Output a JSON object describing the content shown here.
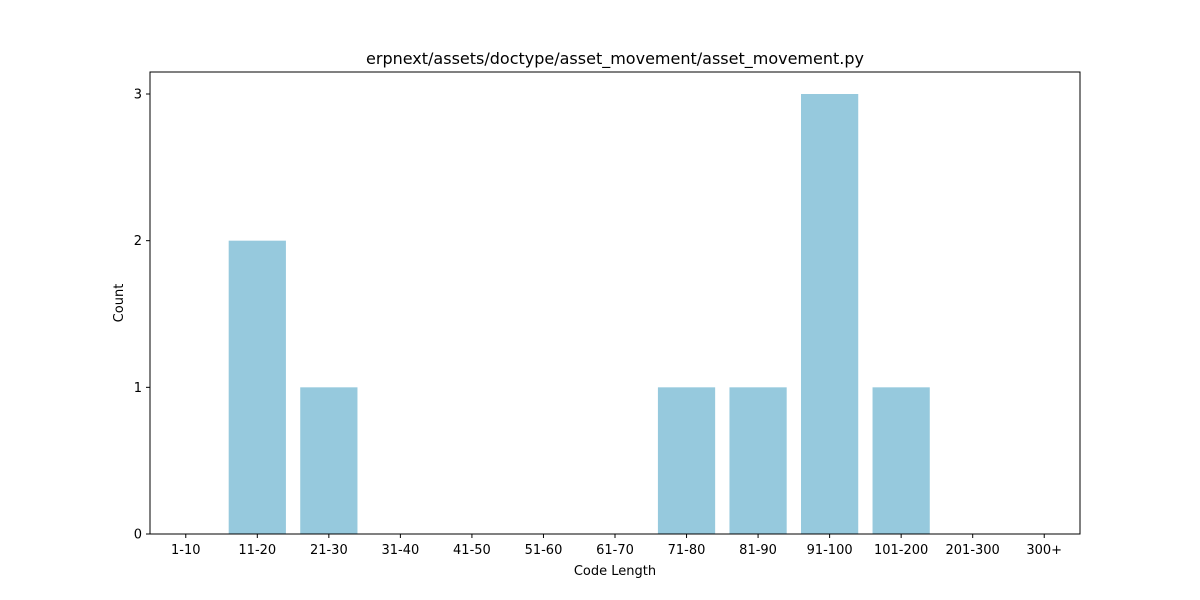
{
  "chart_data": {
    "type": "bar",
    "title": "erpnext/assets/doctype/asset_movement/asset_movement.py",
    "xlabel": "Code Length",
    "ylabel": "Count",
    "categories": [
      "1-10",
      "11-20",
      "21-30",
      "31-40",
      "41-50",
      "51-60",
      "61-70",
      "71-80",
      "81-90",
      "91-100",
      "101-200",
      "201-300",
      "300+"
    ],
    "values": [
      0,
      2,
      1,
      0,
      0,
      0,
      0,
      1,
      1,
      3,
      1,
      0,
      0
    ],
    "ylim": [
      0,
      3.15
    ],
    "yticks": [
      0,
      1,
      2,
      3
    ],
    "grid": false,
    "bar_color": "#96c9dd"
  }
}
